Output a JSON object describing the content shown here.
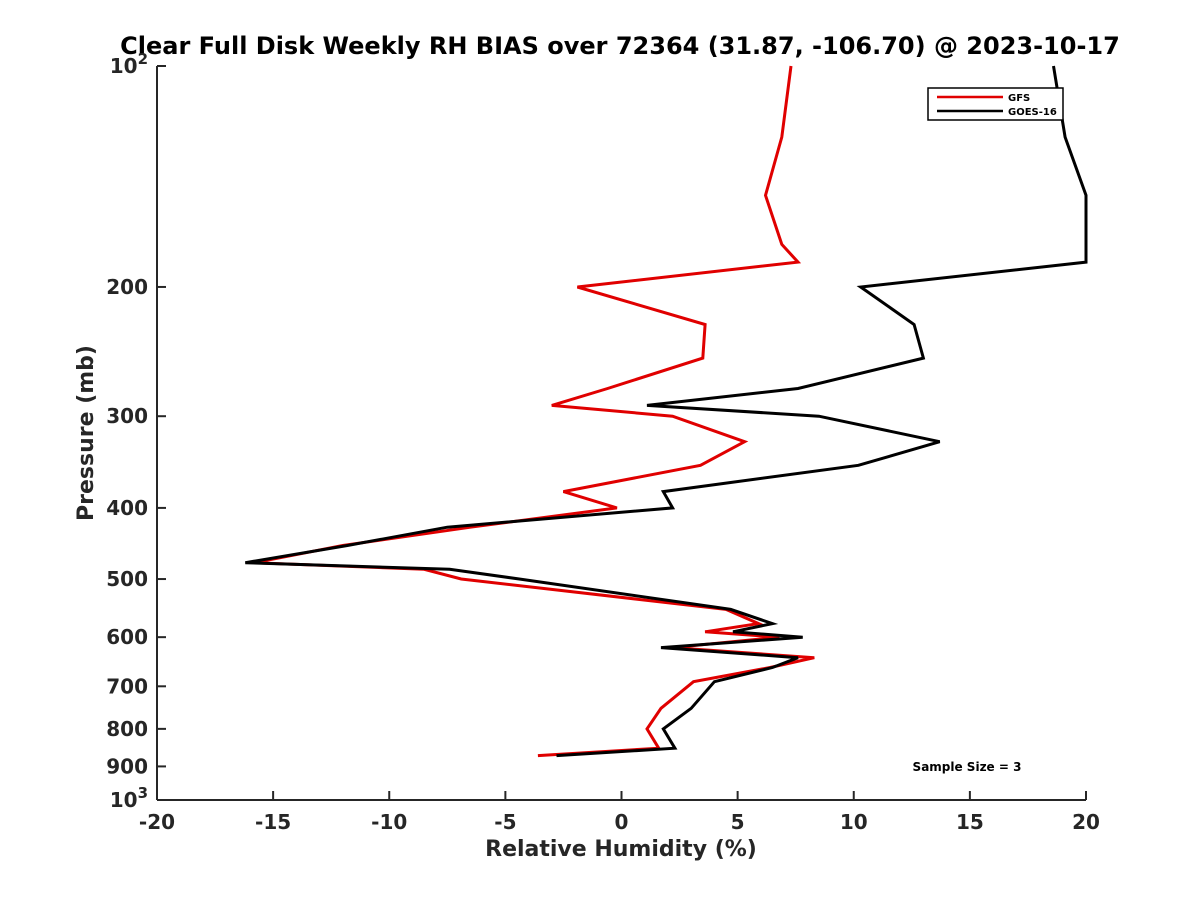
{
  "chart_data": {
    "type": "line",
    "title": "Clear Full Disk Weekly RH BIAS over 72364 (31.87, -106.70) @ 2023-10-17",
    "xlabel": "Relative Humidity (%)",
    "ylabel": "Pressure (mb)",
    "xlim": [
      -20,
      20
    ],
    "ylim": [
      100,
      1000
    ],
    "y_scale": "log",
    "y_reversed": true,
    "grid": false,
    "legend_position": "top-right",
    "x_ticks": [
      -20,
      -15,
      -10,
      -5,
      0,
      5,
      10,
      15,
      20
    ],
    "x_tick_labels": [
      "-20",
      "-15",
      "-10",
      "-5",
      "0",
      "5",
      "10",
      "15",
      "20"
    ],
    "y_ticks": [
      100,
      200,
      300,
      400,
      500,
      600,
      700,
      800,
      900,
      1000
    ],
    "y_tick_labels": [
      {
        "base": "10",
        "exp": "2"
      },
      {
        "base": "200",
        "exp": ""
      },
      {
        "base": "300",
        "exp": ""
      },
      {
        "base": "400",
        "exp": ""
      },
      {
        "base": "500",
        "exp": ""
      },
      {
        "base": "600",
        "exp": ""
      },
      {
        "base": "700",
        "exp": ""
      },
      {
        "base": "800",
        "exp": ""
      },
      {
        "base": "900",
        "exp": ""
      },
      {
        "base": "10",
        "exp": "3"
      }
    ],
    "series": [
      {
        "name": "GFS",
        "color": "#e00000",
        "points": [
          {
            "x": 7.3,
            "y": 100
          },
          {
            "x": 6.9,
            "y": 125
          },
          {
            "x": 6.2,
            "y": 150
          },
          {
            "x": 6.9,
            "y": 175
          },
          {
            "x": 7.6,
            "y": 185
          },
          {
            "x": -1.9,
            "y": 200
          },
          {
            "x": 3.6,
            "y": 225
          },
          {
            "x": 3.5,
            "y": 250
          },
          {
            "x": -0.6,
            "y": 275
          },
          {
            "x": -3.0,
            "y": 290
          },
          {
            "x": 2.2,
            "y": 300
          },
          {
            "x": 5.3,
            "y": 325
          },
          {
            "x": 3.4,
            "y": 350
          },
          {
            "x": -2.5,
            "y": 380
          },
          {
            "x": -0.2,
            "y": 400
          },
          {
            "x": -6.5,
            "y": 425
          },
          {
            "x": -12.0,
            "y": 450
          },
          {
            "x": -15.8,
            "y": 475
          },
          {
            "x": -8.5,
            "y": 485
          },
          {
            "x": -6.9,
            "y": 500
          },
          {
            "x": 4.5,
            "y": 550
          },
          {
            "x": 5.9,
            "y": 575
          },
          {
            "x": 3.6,
            "y": 590
          },
          {
            "x": 6.8,
            "y": 600
          },
          {
            "x": 2.2,
            "y": 620
          },
          {
            "x": 8.3,
            "y": 640
          },
          {
            "x": 6.4,
            "y": 660
          },
          {
            "x": 3.1,
            "y": 690
          },
          {
            "x": 1.7,
            "y": 750
          },
          {
            "x": 1.1,
            "y": 800
          },
          {
            "x": 1.6,
            "y": 850
          },
          {
            "x": -3.6,
            "y": 870
          }
        ]
      },
      {
        "name": "GOES-16",
        "color": "#000000",
        "points": [
          {
            "x": 18.6,
            "y": 100
          },
          {
            "x": 19.1,
            "y": 125
          },
          {
            "x": 20.0,
            "y": 150
          },
          {
            "x": 20.0,
            "y": 185
          },
          {
            "x": 10.3,
            "y": 200
          },
          {
            "x": 12.6,
            "y": 225
          },
          {
            "x": 13.0,
            "y": 250
          },
          {
            "x": 7.6,
            "y": 275
          },
          {
            "x": 1.1,
            "y": 290
          },
          {
            "x": 8.5,
            "y": 300
          },
          {
            "x": 13.7,
            "y": 325
          },
          {
            "x": 10.2,
            "y": 350
          },
          {
            "x": 1.8,
            "y": 380
          },
          {
            "x": 2.2,
            "y": 400
          },
          {
            "x": -7.5,
            "y": 425
          },
          {
            "x": -11.8,
            "y": 450
          },
          {
            "x": -16.2,
            "y": 475
          },
          {
            "x": -7.4,
            "y": 485
          },
          {
            "x": -4.4,
            "y": 500
          },
          {
            "x": 4.7,
            "y": 550
          },
          {
            "x": 6.5,
            "y": 575
          },
          {
            "x": 4.8,
            "y": 590
          },
          {
            "x": 7.8,
            "y": 600
          },
          {
            "x": 1.7,
            "y": 620
          },
          {
            "x": 7.6,
            "y": 640
          },
          {
            "x": 6.5,
            "y": 660
          },
          {
            "x": 4.0,
            "y": 690
          },
          {
            "x": 3.0,
            "y": 750
          },
          {
            "x": 1.8,
            "y": 800
          },
          {
            "x": 2.3,
            "y": 850
          },
          {
            "x": -2.8,
            "y": 870
          }
        ]
      }
    ],
    "annotations": [
      "Sample Size = 3"
    ]
  }
}
